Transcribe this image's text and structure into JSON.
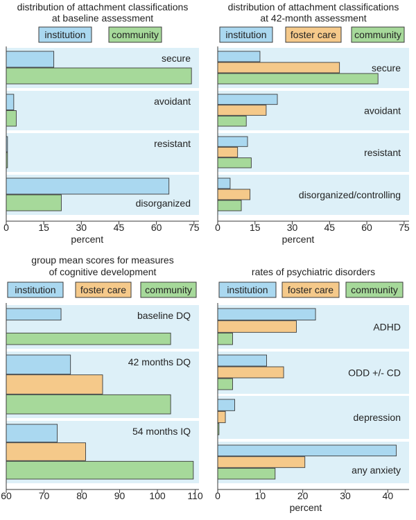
{
  "colors": {
    "institution": "#aad8f0",
    "foster care": "#f5c98a",
    "community": "#a6d99a",
    "panel_bg": "#ddf0f8",
    "stroke": "#3a3a3a"
  },
  "chart_data": [
    {
      "type": "bar",
      "title": "distribution of attachment classifications\nat baseline assessment",
      "xlabel": "percent",
      "xlim": [
        0,
        77
      ],
      "ticks": [
        0,
        15,
        30,
        45,
        60,
        75
      ],
      "legend": [
        "institution",
        "community"
      ],
      "categories": [
        "secure",
        "avoidant",
        "resistant",
        "disorganized"
      ],
      "series": [
        {
          "name": "institution",
          "values": [
            19,
            3,
            0.5,
            65
          ]
        },
        {
          "name": "community",
          "values": [
            74,
            4,
            0.5,
            22
          ]
        }
      ]
    },
    {
      "type": "bar",
      "title": "distribution of attachment classifications\nat 42-month assessment",
      "xlabel": "percent",
      "xlim": [
        0,
        77
      ],
      "ticks": [
        0,
        15,
        30,
        45,
        60,
        75
      ],
      "legend": [
        "institution",
        "foster care",
        "community"
      ],
      "categories": [
        "secure",
        "avoidant",
        "resistant",
        "disorganized/controlling"
      ],
      "series": [
        {
          "name": "institution",
          "values": [
            17,
            24,
            12,
            5
          ]
        },
        {
          "name": "foster care",
          "values": [
            49,
            19.5,
            8,
            13
          ]
        },
        {
          "name": "community",
          "values": [
            64.5,
            11.5,
            13.5,
            9.5
          ]
        }
      ]
    },
    {
      "type": "bar",
      "title": "group mean scores for measures\nof cognitive development",
      "xlabel": "",
      "xlim": [
        60,
        111
      ],
      "ticks": [
        60,
        70,
        80,
        90,
        100,
        110
      ],
      "legend": [
        "institution",
        "foster care",
        "community"
      ],
      "categories": [
        "baseline DQ",
        "42 months DQ",
        "54 months IQ"
      ],
      "series": [
        {
          "name": "institution",
          "values": [
            74.5,
            77,
            73.5
          ]
        },
        {
          "name": "foster care",
          "values": [
            null,
            85.5,
            81
          ]
        },
        {
          "name": "community",
          "values": [
            103.5,
            103.5,
            109.5
          ]
        }
      ]
    },
    {
      "type": "bar",
      "title": "rates of psychiatric disorders",
      "xlabel": "percent",
      "xlim": [
        0,
        45
      ],
      "ticks": [
        0,
        10,
        20,
        30,
        40
      ],
      "legend": [
        "institution",
        "foster care",
        "community"
      ],
      "categories": [
        "ADHD",
        "ODD +/- CD",
        "depression",
        "any anxiety"
      ],
      "series": [
        {
          "name": "institution",
          "values": [
            23,
            11.5,
            4,
            42
          ]
        },
        {
          "name": "foster care",
          "values": [
            18.5,
            15.5,
            1.8,
            20.5
          ]
        },
        {
          "name": "community",
          "values": [
            3.5,
            3.5,
            0.3,
            13.5
          ]
        }
      ]
    }
  ]
}
